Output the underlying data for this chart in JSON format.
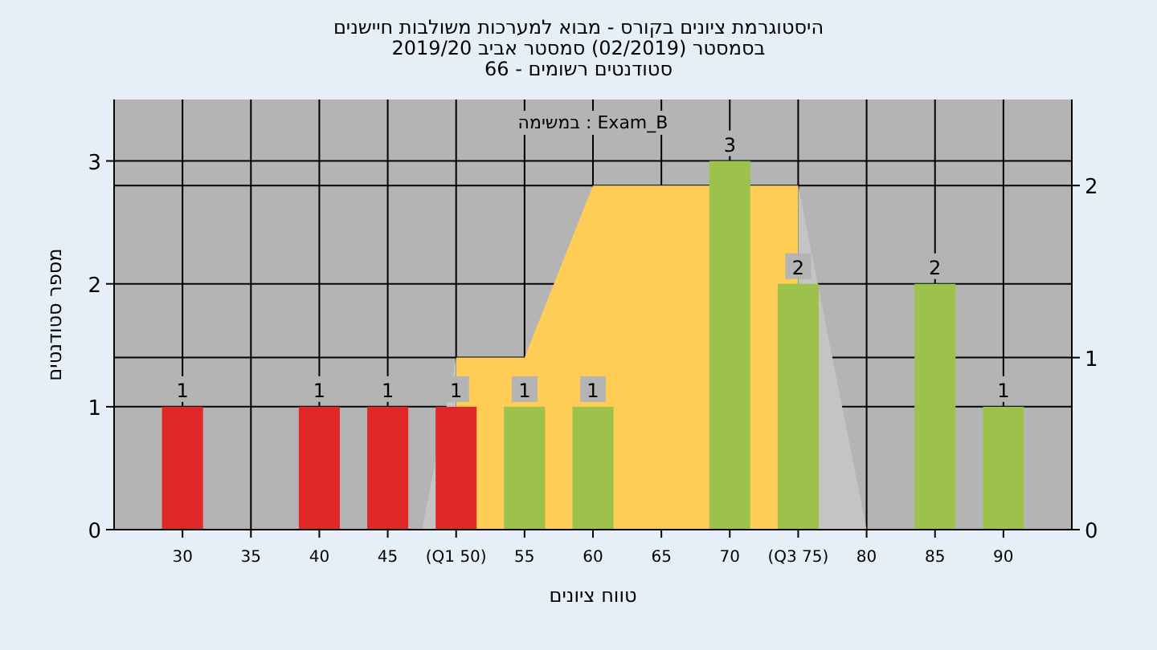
{
  "chart_data": {
    "type": "bar",
    "title": "היסטוגרמת ציונים בקורס - מבוא למערכות משולבות חיישנים",
    "subtitle": "בסמסטר  (02/2019)  סמסטר אביב 2019/20\nסטודנטים רשומים - 66",
    "annotations": [
      "במשימה : Exam_B"
    ],
    "xlabel": "טווח ציונים",
    "ylabel": "מספר סטודנטים",
    "xlim": [
      25,
      95
    ],
    "xticks": [
      30,
      35,
      40,
      45,
      {
        "value": 50,
        "label": "(Q1 50)"
      },
      55,
      60,
      65,
      70,
      {
        "value": 75,
        "label": "(Q3 75)"
      },
      80,
      85,
      90
    ],
    "ylim": [
      0,
      3.5
    ],
    "yticks": [
      0,
      1,
      2,
      3
    ],
    "y2lim": [
      0,
      2.5
    ],
    "y2ticks": [
      0,
      1,
      2
    ],
    "grid": true,
    "series": [
      {
        "type": "area",
        "axis": "y2",
        "color": "#c4c4c4",
        "x": [
          47.5,
          50
        ],
        "values": [
          0,
          1
        ]
      },
      {
        "type": "area",
        "axis": "y2",
        "color": "#ffcc55",
        "x": [
          50,
          55,
          60,
          75
        ],
        "values": [
          1,
          1,
          2,
          2
        ]
      },
      {
        "type": "area",
        "axis": "y2",
        "color": "#c4c4c4",
        "x": [
          75,
          80
        ],
        "values": [
          2,
          0
        ]
      },
      {
        "type": "bar",
        "x": [
          30,
          40,
          45,
          50,
          55,
          60,
          70,
          75,
          85,
          90
        ],
        "values": [
          1,
          1,
          1,
          1,
          1,
          1,
          3,
          2,
          2,
          1
        ],
        "colors": [
          "#e02828",
          "#e02828",
          "#e02828",
          "#e02828",
          "#9dc24c",
          "#9dc24c",
          "#9dc24c",
          "#9dc24c",
          "#9dc24c",
          "#9dc24c"
        ],
        "value_labels": [
          "1",
          "1",
          "1",
          "1",
          "1",
          "1",
          "3",
          "2",
          "2",
          "1"
        ]
      }
    ]
  }
}
